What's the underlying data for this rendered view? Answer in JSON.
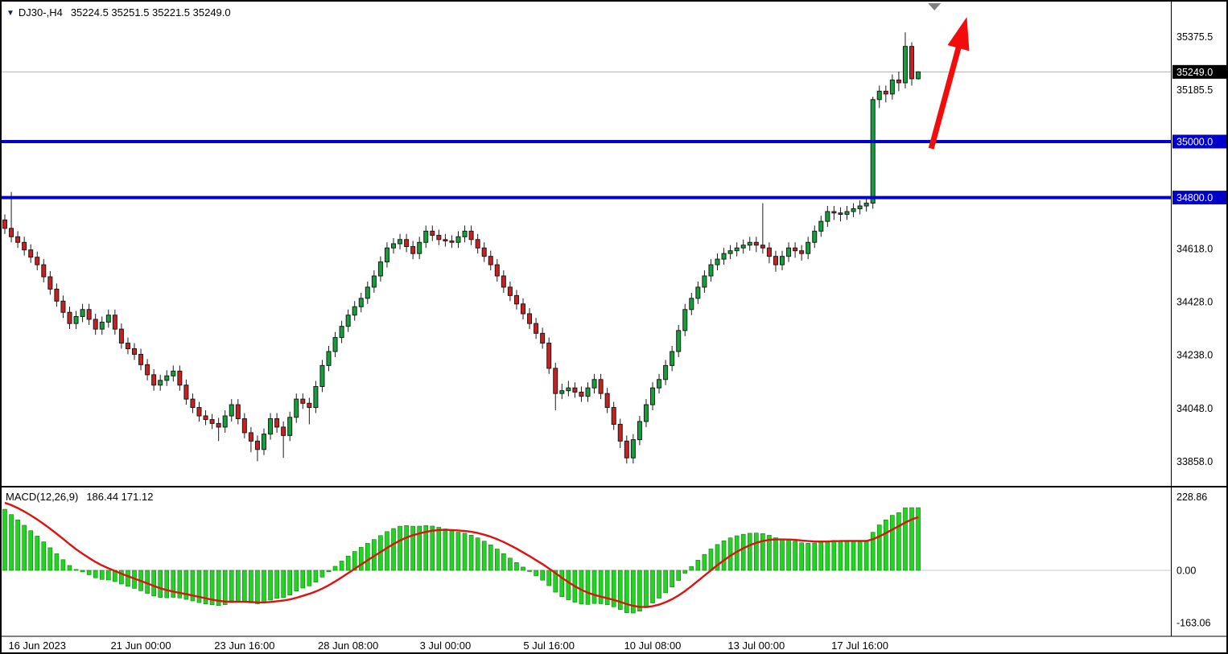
{
  "header": {
    "symbol": "DJ30-,H4",
    "quote": "35224.5 35251.5 35221.5 35249.0",
    "marker_icon": "triangle-down"
  },
  "indicator_label": {
    "name": "MACD(12,26,9)",
    "values": "186.44 171.12"
  },
  "colors": {
    "background": "#FFFFFF",
    "candle_up": "#0FA33A",
    "candle_down": "#CC1F1F",
    "candle_outline": "#1A1A1A",
    "macd_bar": "#22D422",
    "macd_bar_edge": "#0B7A0B",
    "macd_signal": "#E01010",
    "hline_blue": "#0000C8",
    "arrow_red": "#F20D0D",
    "current_price_line": "#B0B0B0",
    "tag_current_bg": "#000000",
    "axis_text": "#000000",
    "separator": "#000000",
    "marker_gray": "#7F7F7F"
  },
  "chart_data": {
    "type": "candlestick",
    "title": "DJ30-,H4",
    "current_price": 35249.0,
    "y_axis": {
      "range": [
        33770,
        35500
      ],
      "ticks": [
        35375.5,
        35185.5,
        34618.0,
        34428.0,
        34238.0,
        34048.0,
        33858.0
      ]
    },
    "price_tags": [
      {
        "label": "35249.0",
        "price": 35249.0,
        "bg": "#000000"
      },
      {
        "label": "35000.0",
        "price": 35000.0,
        "bg": "#0000C8"
      },
      {
        "label": "34800.0",
        "price": 34800.0,
        "bg": "#0000C8"
      }
    ],
    "hlines": [
      {
        "price": 35000.0,
        "color": "#0000C8",
        "width": 4
      },
      {
        "price": 34800.0,
        "color": "#0000C8",
        "width": 4
      }
    ],
    "x_axis": {
      "labels": [
        {
          "label": "16 Jun 2023",
          "idx": 5
        },
        {
          "label": "21 Jun 00:00",
          "idx": 21
        },
        {
          "label": "23 Jun 16:00",
          "idx": 37
        },
        {
          "label": "28 Jun 08:00",
          "idx": 53
        },
        {
          "label": "3 Jul 00:00",
          "idx": 68
        },
        {
          "label": "5 Jul 16:00",
          "idx": 84
        },
        {
          "label": "10 Jul 08:00",
          "idx": 100
        },
        {
          "label": "13 Jul 00:00",
          "idx": 116
        },
        {
          "label": "17 Jul 16:00",
          "idx": 132
        }
      ]
    },
    "candles": [
      [
        34720,
        34740,
        34670,
        34690
      ],
      [
        34690,
        34820,
        34640,
        34660
      ],
      [
        34660,
        34680,
        34620,
        34640
      ],
      [
        34640,
        34660,
        34593,
        34613
      ],
      [
        34613,
        34633,
        34567,
        34587
      ],
      [
        34587,
        34607,
        34540,
        34560
      ],
      [
        34560,
        34580,
        34497,
        34517
      ],
      [
        34517,
        34537,
        34453,
        34473
      ],
      [
        34473,
        34493,
        34410,
        34430
      ],
      [
        34430,
        34450,
        34370,
        34390
      ],
      [
        34390,
        34410,
        34330,
        34350
      ],
      [
        34350,
        34395,
        34330,
        34375
      ],
      [
        34375,
        34420,
        34355,
        34400
      ],
      [
        34400,
        34420,
        34345,
        34365
      ],
      [
        34365,
        34385,
        34310,
        34330
      ],
      [
        34330,
        34375,
        34310,
        34355
      ],
      [
        34355,
        34400,
        34335,
        34380
      ],
      [
        34380,
        34400,
        34310,
        34330
      ],
      [
        34330,
        34350,
        34260,
        34280
      ],
      [
        34280,
        34300,
        34240,
        34260
      ],
      [
        34260,
        34280,
        34220,
        34240
      ],
      [
        34240,
        34260,
        34183,
        34203
      ],
      [
        34203,
        34223,
        34147,
        34167
      ],
      [
        34167,
        34187,
        34110,
        34130
      ],
      [
        34130,
        34167,
        34110,
        34147
      ],
      [
        34147,
        34183,
        34127,
        34163
      ],
      [
        34163,
        34200,
        34143,
        34180
      ],
      [
        34180,
        34200,
        34110,
        34130
      ],
      [
        34130,
        34150,
        34060,
        34080
      ],
      [
        34080,
        34100,
        34030,
        34050
      ],
      [
        34050,
        34070,
        34000,
        34020
      ],
      [
        34020,
        34040,
        33987,
        34007
      ],
      [
        34007,
        34027,
        33973,
        33993
      ],
      [
        33993,
        34013,
        33930,
        33980
      ],
      [
        33980,
        34040,
        33960,
        34020
      ],
      [
        34020,
        34080,
        34000,
        34060
      ],
      [
        34060,
        34080,
        33990,
        34010
      ],
      [
        34010,
        34030,
        33940,
        33960
      ],
      [
        33960,
        33980,
        33890,
        33930
      ],
      [
        33930,
        33950,
        33858,
        33900
      ],
      [
        33900,
        33975,
        33880,
        33955
      ],
      [
        33955,
        34030,
        33935,
        34010
      ],
      [
        34010,
        34030,
        33960,
        33980
      ],
      [
        33980,
        34000,
        33870,
        33950
      ],
      [
        33950,
        34035,
        33930,
        34015
      ],
      [
        34015,
        34100,
        33995,
        34080
      ],
      [
        34080,
        34100,
        34045,
        34065
      ],
      [
        34065,
        34085,
        33990,
        34050
      ],
      [
        34050,
        34145,
        34030,
        34125
      ],
      [
        34125,
        34220,
        34105,
        34200
      ],
      [
        34200,
        34270,
        34180,
        34250
      ],
      [
        34250,
        34320,
        34230,
        34300
      ],
      [
        34300,
        34360,
        34280,
        34340
      ],
      [
        34340,
        34400,
        34320,
        34380
      ],
      [
        34380,
        34430,
        34360,
        34410
      ],
      [
        34410,
        34460,
        34390,
        34440
      ],
      [
        34440,
        34500,
        34420,
        34480
      ],
      [
        34480,
        34540,
        34460,
        34520
      ],
      [
        34520,
        34590,
        34500,
        34570
      ],
      [
        34570,
        34640,
        34550,
        34620
      ],
      [
        34620,
        34655,
        34600,
        34635
      ],
      [
        34635,
        34670,
        34615,
        34650
      ],
      [
        34650,
        34670,
        34605,
        34625
      ],
      [
        34625,
        34645,
        34580,
        34600
      ],
      [
        34600,
        34660,
        34580,
        34640
      ],
      [
        34640,
        34700,
        34620,
        34680
      ],
      [
        34680,
        34700,
        34645,
        34665
      ],
      [
        34665,
        34685,
        34630,
        34650
      ],
      [
        34650,
        34670,
        34625,
        34645
      ],
      [
        34645,
        34665,
        34620,
        34640
      ],
      [
        34640,
        34680,
        34620,
        34660
      ],
      [
        34660,
        34700,
        34640,
        34680
      ],
      [
        34680,
        34700,
        34630,
        34650
      ],
      [
        34650,
        34670,
        34600,
        34620
      ],
      [
        34620,
        34640,
        34570,
        34590
      ],
      [
        34590,
        34610,
        34540,
        34560
      ],
      [
        34560,
        34580,
        34500,
        34520
      ],
      [
        34520,
        34540,
        34460,
        34480
      ],
      [
        34480,
        34500,
        34430,
        34450
      ],
      [
        34450,
        34470,
        34400,
        34420
      ],
      [
        34420,
        34440,
        34365,
        34385
      ],
      [
        34385,
        34405,
        34330,
        34350
      ],
      [
        34350,
        34370,
        34295,
        34315
      ],
      [
        34315,
        34335,
        34260,
        34280
      ],
      [
        34280,
        34300,
        34170,
        34190
      ],
      [
        34190,
        34210,
        34040,
        34100
      ],
      [
        34100,
        34135,
        34080,
        34110
      ],
      [
        34110,
        34145,
        34090,
        34120
      ],
      [
        34120,
        34140,
        34085,
        34105
      ],
      [
        34105,
        34125,
        34070,
        34090
      ],
      [
        34090,
        34140,
        34070,
        34120
      ],
      [
        34120,
        34170,
        34100,
        34150
      ],
      [
        34150,
        34170,
        34080,
        34100
      ],
      [
        34100,
        34120,
        34030,
        34050
      ],
      [
        34050,
        34070,
        33970,
        33990
      ],
      [
        33990,
        34010,
        33905,
        33930
      ],
      [
        33930,
        33950,
        33850,
        33870
      ],
      [
        33870,
        33955,
        33850,
        33935
      ],
      [
        33935,
        34020,
        33915,
        34000
      ],
      [
        34000,
        34080,
        33980,
        34060
      ],
      [
        34060,
        34140,
        34040,
        34120
      ],
      [
        34120,
        34170,
        34100,
        34150
      ],
      [
        34150,
        34220,
        34130,
        34200
      ],
      [
        34200,
        34270,
        34180,
        34250
      ],
      [
        34250,
        34345,
        34230,
        34325
      ],
      [
        34325,
        34420,
        34305,
        34400
      ],
      [
        34400,
        34460,
        34380,
        34440
      ],
      [
        34440,
        34500,
        34420,
        34480
      ],
      [
        34480,
        34540,
        34460,
        34520
      ],
      [
        34520,
        34580,
        34500,
        34560
      ],
      [
        34560,
        34600,
        34540,
        34580
      ],
      [
        34580,
        34620,
        34560,
        34600
      ],
      [
        34600,
        34630,
        34580,
        34610
      ],
      [
        34610,
        34640,
        34590,
        34620
      ],
      [
        34620,
        34650,
        34600,
        34630
      ],
      [
        34630,
        34660,
        34610,
        34640
      ],
      [
        34640,
        34660,
        34605,
        34630
      ],
      [
        34630,
        34780,
        34600,
        34620
      ],
      [
        34620,
        34640,
        34565,
        34590
      ],
      [
        34590,
        34610,
        34535,
        34560
      ],
      [
        34560,
        34610,
        34540,
        34590
      ],
      [
        34590,
        34640,
        34570,
        34620
      ],
      [
        34620,
        34640,
        34585,
        34610
      ],
      [
        34610,
        34630,
        34575,
        34600
      ],
      [
        34600,
        34660,
        34580,
        34640
      ],
      [
        34640,
        34700,
        34620,
        34680
      ],
      [
        34680,
        34735,
        34660,
        34715
      ],
      [
        34715,
        34770,
        34695,
        34750
      ],
      [
        34750,
        34770,
        34720,
        34745
      ],
      [
        34745,
        34765,
        34715,
        34740
      ],
      [
        34740,
        34770,
        34720,
        34750
      ],
      [
        34750,
        34780,
        34730,
        34760
      ],
      [
        34760,
        34790,
        34740,
        34770
      ],
      [
        34770,
        34800,
        34750,
        34780
      ],
      [
        34780,
        35160,
        34760,
        35150
      ],
      [
        35150,
        35200,
        35120,
        35180
      ],
      [
        35180,
        35200,
        35140,
        35170
      ],
      [
        35170,
        35240,
        35150,
        35220
      ],
      [
        35220,
        35250,
        35180,
        35210
      ],
      [
        35210,
        35390,
        35190,
        35340
      ],
      [
        35340,
        35355,
        35200,
        35224.5
      ],
      [
        35224.5,
        35251.5,
        35221.5,
        35249.0
      ]
    ],
    "macd": {
      "params": "12,26,9",
      "current_macd": 186.44,
      "current_signal": 171.12,
      "range": [
        -200,
        255
      ],
      "seed": {
        "macd0": 205,
        "signal0": 215
      },
      "y_ticks": [
        {
          "label": "228.86",
          "value": 228.86
        },
        {
          "label": "0.00",
          "value": 0.0
        },
        {
          "label": "-163.06",
          "value": -163.06
        }
      ]
    },
    "marker": {
      "idx": 143.5,
      "y": 4,
      "w": 16,
      "h": 9,
      "color": "#7F7F7F"
    },
    "arrow": {
      "idx1": 143,
      "price1": 34975,
      "idx2": 148.5,
      "price2": 35445,
      "color": "#F20D0D",
      "width": 7,
      "head_len": 40,
      "head_halfwidth": 14
    }
  }
}
